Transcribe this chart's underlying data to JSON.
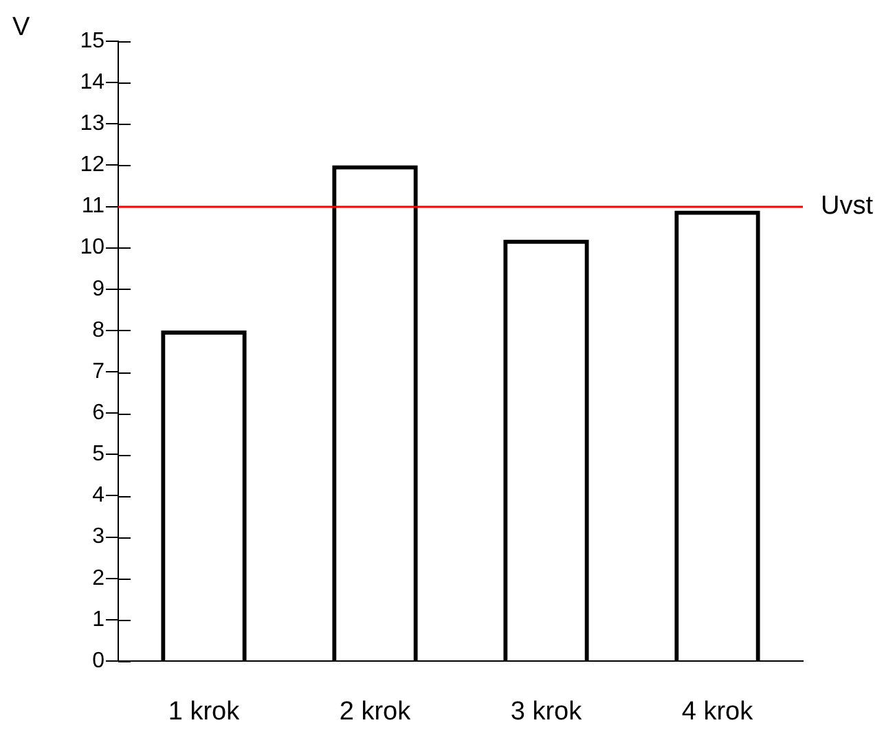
{
  "chart_data": {
    "type": "bar",
    "ylabel": "V",
    "categories": [
      "1 krok",
      "2 krok",
      "3 krok",
      "4 krok"
    ],
    "values": [
      8,
      12,
      10.2,
      10.9
    ],
    "color": "#000000",
    "ylim": [
      0,
      15
    ],
    "yticks": [
      0,
      1,
      2,
      3,
      4,
      5,
      6,
      7,
      8,
      9,
      10,
      11,
      12,
      13,
      14,
      15
    ],
    "grid": false,
    "ref_lines": [
      {
        "axis": "y",
        "value": 11,
        "label": "Uvst",
        "color": "#ff0000"
      }
    ]
  }
}
